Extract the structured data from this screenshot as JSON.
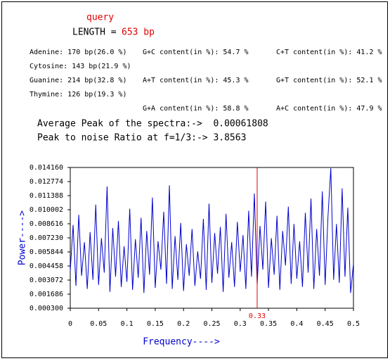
{
  "header": {
    "query": "query",
    "length_label": "LENGTH =",
    "length_value": "653 bp"
  },
  "composition": [
    "Adenine: 170 bp(26.0 %)",
    "Cytosine: 143 bp(21.9 %)",
    "Guanine: 214 bp(32.8 %)",
    "Thymine: 126 bp(19.3 %)"
  ],
  "content": [
    "G+C content(in %): 54.7 %",
    "C+T content(in %): 41.2 %",
    "A+T content(in %): 45.3 %",
    "G+T content(in %): 52.1 %",
    "G+A content(in %): 58.8 %",
    "A+C content(in %): 47.9 %"
  ],
  "summary": [
    "Average Peak of the spectra:->  0.00061808",
    "Peak to noise Ratio at f=1/3:-> 3.8563"
  ],
  "chart_data": {
    "type": "line",
    "xlabel": "Frequency---->",
    "ylabel": "Power---->",
    "xlim": [
      0,
      0.5
    ],
    "xticks": [
      0,
      0.05,
      0.1,
      0.15,
      0.2,
      0.25,
      0.3,
      0.35,
      0.4,
      0.45,
      0.5
    ],
    "ylim": [
      0.0003,
      0.01416
    ],
    "yticks": [
      {
        "value": 0.0003,
        "label": "0.000300"
      },
      {
        "value": 0.001686,
        "label": "0.001686"
      },
      {
        "value": 0.003072,
        "label": "0.003072"
      },
      {
        "value": 0.004458,
        "label": "0.004458"
      },
      {
        "value": 0.005844,
        "label": "0.005844"
      },
      {
        "value": 0.00723,
        "label": "0.007230"
      },
      {
        "value": 0.008616,
        "label": "0.008616"
      },
      {
        "value": 0.010002,
        "label": "0.010002"
      },
      {
        "value": 0.011388,
        "label": "0.011388"
      },
      {
        "value": 0.012774,
        "label": "0.012774"
      },
      {
        "value": 0.01416,
        "label": "0.014160"
      }
    ],
    "marker": 0.33,
    "marker_color": "#e00000",
    "series": [
      {
        "color": "#0000cc",
        "x": [
          0,
          0.005,
          0.01,
          0.015,
          0.02,
          0.025,
          0.03,
          0.035,
          0.04,
          0.045,
          0.05,
          0.055,
          0.06,
          0.065,
          0.07,
          0.075,
          0.08,
          0.085,
          0.09,
          0.095,
          0.1,
          0.105,
          0.11,
          0.115,
          0.12,
          0.125,
          0.13,
          0.135,
          0.14,
          0.145,
          0.15,
          0.155,
          0.16,
          0.165,
          0.17,
          0.175,
          0.18,
          0.185,
          0.19,
          0.195,
          0.2,
          0.205,
          0.21,
          0.215,
          0.22,
          0.225,
          0.23,
          0.235,
          0.24,
          0.245,
          0.25,
          0.255,
          0.26,
          0.265,
          0.27,
          0.275,
          0.28,
          0.285,
          0.29,
          0.295,
          0.3,
          0.305,
          0.31,
          0.315,
          0.32,
          0.325,
          0.33,
          0.335,
          0.34,
          0.345,
          0.35,
          0.355,
          0.36,
          0.365,
          0.37,
          0.375,
          0.38,
          0.385,
          0.39,
          0.395,
          0.4,
          0.405,
          0.41,
          0.415,
          0.42,
          0.425,
          0.43,
          0.435,
          0.44,
          0.445,
          0.45,
          0.455,
          0.46,
          0.465,
          0.47,
          0.475,
          0.48,
          0.485,
          0.49,
          0.495,
          0.5
        ],
        "values": [
          0.004,
          0.0085,
          0.0025,
          0.0095,
          0.0035,
          0.0068,
          0.0022,
          0.0078,
          0.0031,
          0.0105,
          0.0026,
          0.0072,
          0.0038,
          0.0123,
          0.0019,
          0.0082,
          0.0034,
          0.0089,
          0.0024,
          0.0064,
          0.0029,
          0.0101,
          0.0021,
          0.0071,
          0.0033,
          0.0092,
          0.0018,
          0.0079,
          0.0036,
          0.0112,
          0.0023,
          0.0069,
          0.0041,
          0.0098,
          0.0027,
          0.0124,
          0.0022,
          0.0074,
          0.0031,
          0.0087,
          0.002,
          0.0066,
          0.0035,
          0.0081,
          0.0025,
          0.0059,
          0.0032,
          0.0091,
          0.0021,
          0.0106,
          0.0028,
          0.0077,
          0.0037,
          0.0083,
          0.0019,
          0.0096,
          0.0033,
          0.0068,
          0.0024,
          0.0088,
          0.0039,
          0.0075,
          0.0022,
          0.0099,
          0.0034,
          0.0116,
          0.0026,
          0.0084,
          0.0041,
          0.0108,
          0.0023,
          0.0072,
          0.0036,
          0.0094,
          0.0021,
          0.0079,
          0.0045,
          0.0103,
          0.0027,
          0.0086,
          0.0032,
          0.0069,
          0.0024,
          0.0097,
          0.0038,
          0.0111,
          0.0022,
          0.0081,
          0.0035,
          0.0118,
          0.0026,
          0.0093,
          0.0141,
          0.0031,
          0.0086,
          0.0028,
          0.0121,
          0.0034,
          0.0102,
          0.0018,
          0.0047
        ]
      }
    ]
  }
}
